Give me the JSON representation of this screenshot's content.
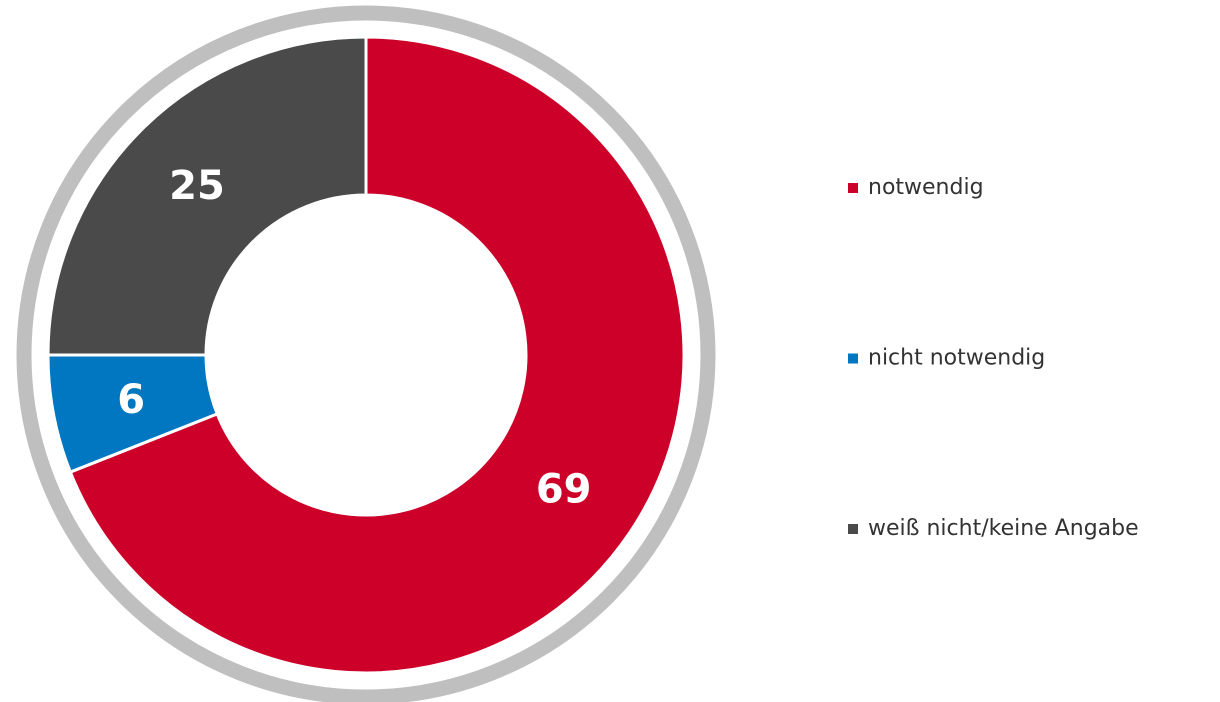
{
  "chart_data": {
    "type": "pie",
    "donut": true,
    "categories": [
      "notwendig",
      "nicht notwendig",
      "weiß nicht/keine Angabe"
    ],
    "values": [
      69,
      6,
      25
    ],
    "colors": [
      "#cc0029",
      "#0077c0",
      "#4a4a4a"
    ],
    "legend": "right"
  }
}
